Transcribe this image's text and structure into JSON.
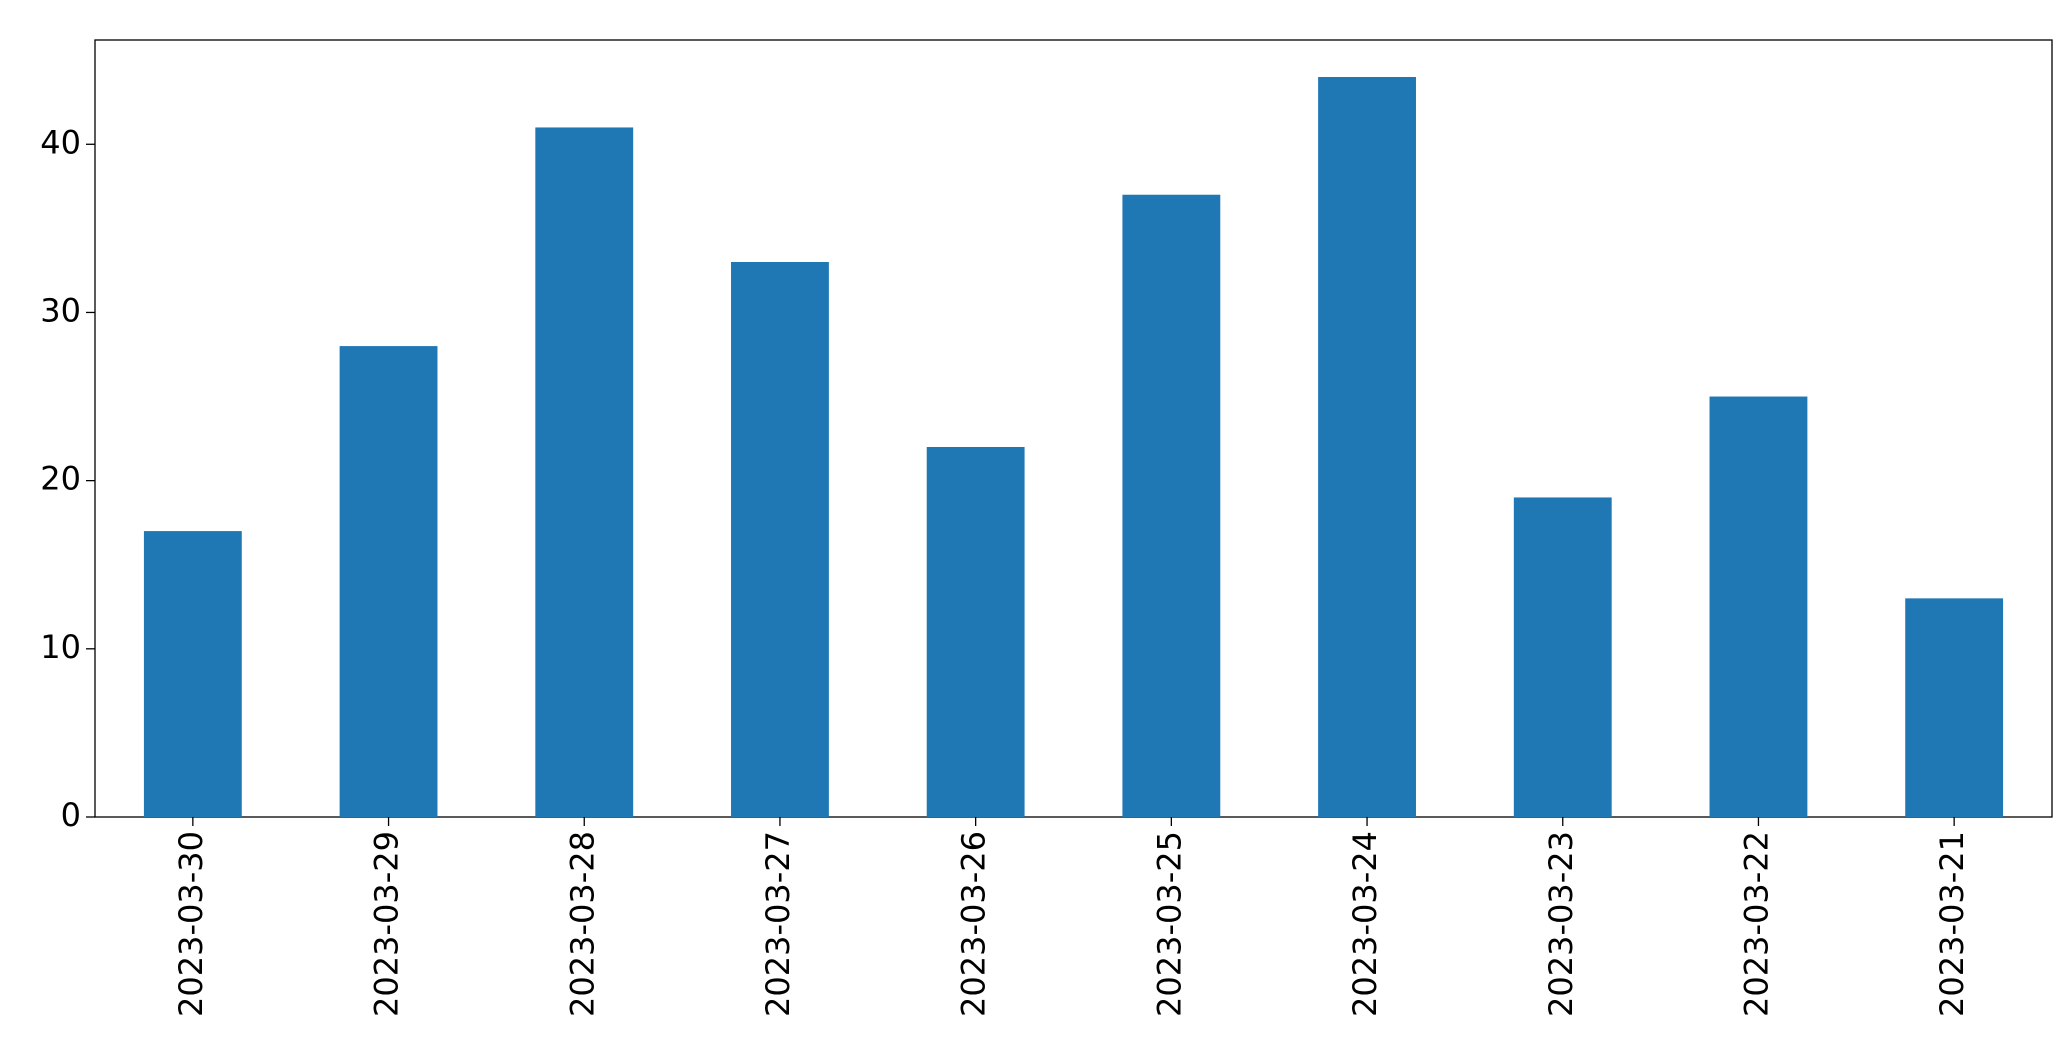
{
  "chart_data": {
    "type": "bar",
    "categories": [
      "2023-03-30",
      "2023-03-29",
      "2023-03-28",
      "2023-03-27",
      "2023-03-26",
      "2023-03-25",
      "2023-03-24",
      "2023-03-23",
      "2023-03-22",
      "2023-03-21"
    ],
    "values": [
      17,
      28,
      41,
      33,
      22,
      37,
      44,
      19,
      25,
      13
    ],
    "color": "#1f77b4",
    "ylim": [
      0,
      46.2
    ],
    "yticks": [
      0,
      10,
      20,
      30,
      40
    ],
    "grid": false
  }
}
